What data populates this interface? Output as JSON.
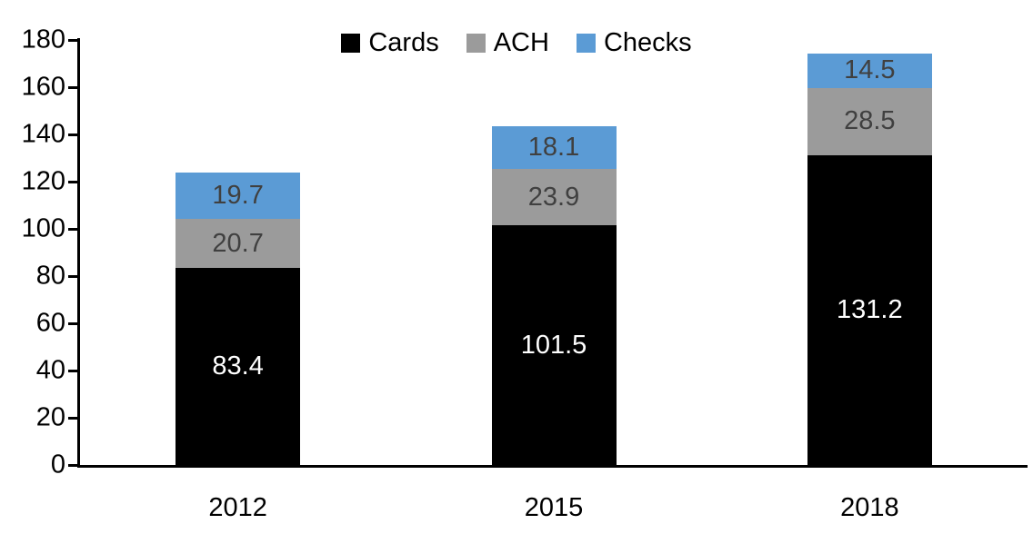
{
  "chart_data": {
    "type": "bar",
    "stacked": true,
    "title": "",
    "xlabel": "",
    "ylabel": "",
    "categories": [
      "2012",
      "2015",
      "2018"
    ],
    "series": [
      {
        "name": "Cards",
        "values": [
          83.4,
          101.5,
          131.2
        ],
        "color": "#000000",
        "label_color": "#ffffff"
      },
      {
        "name": "ACH",
        "values": [
          20.7,
          23.9,
          28.5
        ],
        "color": "#9b9b9b",
        "label_color": "#404040"
      },
      {
        "name": "Checks",
        "values": [
          19.7,
          18.1,
          14.5
        ],
        "color": "#5b9bd5",
        "label_color": "#404040"
      }
    ],
    "totals": [
      123.8,
      143.5,
      174.2
    ],
    "ylim": [
      0,
      180
    ],
    "yticks": [
      0,
      20,
      40,
      60,
      80,
      100,
      120,
      140,
      160,
      180
    ],
    "grid": false,
    "data_labels": true,
    "legend_position": "top-center",
    "axis_color": "#000000",
    "background_color": "#ffffff"
  }
}
